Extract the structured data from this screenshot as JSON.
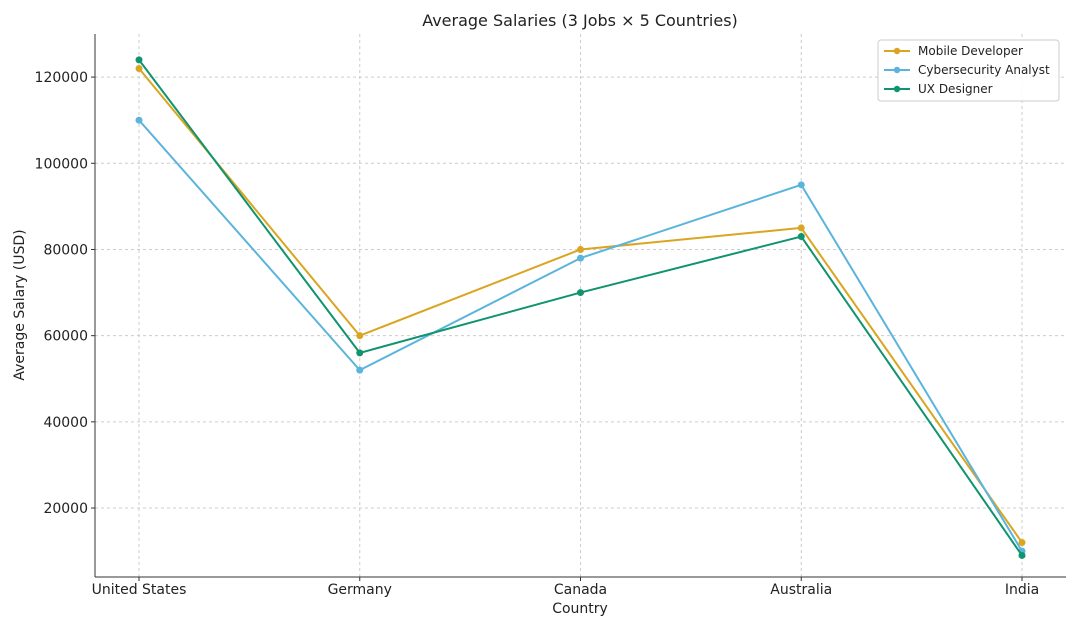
{
  "chart_data": {
    "type": "line",
    "title": "Average Salaries (3 Jobs × 5 Countries)",
    "xlabel": "Country",
    "ylabel": "Average Salary (USD)",
    "categories": [
      "United States",
      "Germany",
      "Canada",
      "Australia",
      "India"
    ],
    "yticks": [
      20000,
      40000,
      60000,
      80000,
      100000,
      120000
    ],
    "ylim": [
      4000,
      130000
    ],
    "grid": true,
    "legend_position": "top-right",
    "series": [
      {
        "name": "Mobile Developer",
        "color": "#DAA520",
        "values": [
          122000,
          60000,
          80000,
          85000,
          12000
        ]
      },
      {
        "name": "Cybersecurity Analyst",
        "color": "#5AB4DC",
        "values": [
          110000,
          52000,
          78000,
          95000,
          10000
        ]
      },
      {
        "name": "UX Designer",
        "color": "#10936F",
        "values": [
          124000,
          56000,
          70000,
          83000,
          9000
        ]
      }
    ]
  }
}
